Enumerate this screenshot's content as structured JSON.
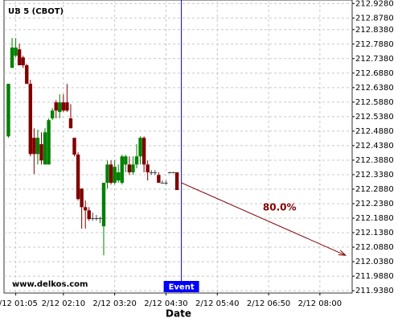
{
  "chart_data": {
    "type": "candlestick",
    "title": "UB 5 (CBOT)",
    "x_label": "Date",
    "watermark": "www.delkos.com",
    "up_color": "#008000",
    "down_color": "#800000",
    "grid": true,
    "xlim": [
      "2/12 00:49",
      "2/12 08:44"
    ],
    "ylim": [
      211.93,
      212.94
    ],
    "xticks": [
      "2/12 01:05",
      "2/12 02:10",
      "2/12 03:20",
      "2/12 04:30",
      "2/12 05:40",
      "2/12 06:50",
      "2/12 08:00"
    ],
    "yticks": [
      {
        "value": 212.928,
        "label": "212.9280"
      },
      {
        "value": 212.878,
        "label": "212.8780"
      },
      {
        "value": 212.838,
        "label": "212.8380"
      },
      {
        "value": 212.788,
        "label": "212.7880"
      },
      {
        "value": 212.738,
        "label": "212.7380"
      },
      {
        "value": 212.688,
        "label": "212.6880"
      },
      {
        "value": 212.638,
        "label": "212.6380"
      },
      {
        "value": 212.588,
        "label": "212.5880"
      },
      {
        "value": 212.538,
        "label": "212.5380"
      },
      {
        "value": 212.488,
        "label": "212.4880"
      },
      {
        "value": 212.438,
        "label": "212.4380"
      },
      {
        "value": 212.388,
        "label": "212.3880"
      },
      {
        "value": 212.338,
        "label": "212.3380"
      },
      {
        "value": 212.288,
        "label": "212.2880"
      },
      {
        "value": 212.238,
        "label": "212.2380"
      },
      {
        "value": 212.188,
        "label": "212.1880"
      },
      {
        "value": 212.138,
        "label": "212.1380"
      },
      {
        "value": 212.088,
        "label": "212.0880"
      },
      {
        "value": 212.038,
        "label": "212.0380"
      },
      {
        "value": 211.988,
        "label": "211.9880"
      },
      {
        "value": 211.938,
        "label": "211.9380"
      }
    ],
    "x": [
      "2/12 00:55",
      "2/12 01:00",
      "2/12 01:05",
      "2/12 01:10",
      "2/12 01:15",
      "2/12 01:20",
      "2/12 01:25",
      "2/12 01:30",
      "2/12 01:35",
      "2/12 01:40",
      "2/12 01:45",
      "2/12 01:50",
      "2/12 01:55",
      "2/12 02:00",
      "2/12 02:05",
      "2/12 02:10",
      "2/12 02:15",
      "2/12 02:20",
      "2/12 02:25",
      "2/12 02:30",
      "2/12 02:35",
      "2/12 02:40",
      "2/12 02:45",
      "2/12 02:50",
      "2/12 02:55",
      "2/12 03:00",
      "2/12 03:05",
      "2/12 03:10",
      "2/12 03:15",
      "2/12 03:20",
      "2/12 03:25",
      "2/12 03:30",
      "2/12 03:35",
      "2/12 03:40",
      "2/12 03:45",
      "2/12 03:50",
      "2/12 03:55",
      "2/12 04:00",
      "2/12 04:05",
      "2/12 04:10",
      "2/12 04:15",
      "2/12 04:20",
      "2/12 04:25",
      "2/12 04:30",
      "2/12 04:35",
      "2/12 04:40",
      "2/12 04:45"
    ],
    "open": [
      212.47,
      212.706,
      212.748,
      212.77,
      212.742,
      212.715,
      212.651,
      212.465,
      212.409,
      212.443,
      212.373,
      212.373,
      212.532,
      212.587,
      212.554,
      212.587,
      212.587,
      212.532,
      212.465,
      212.407,
      212.29,
      212.226,
      212.215,
      212.188,
      212.188,
      212.188,
      212.16,
      212.31,
      212.373,
      212.31,
      212.318,
      212.31,
      212.373,
      212.373,
      212.346,
      212.373,
      212.401,
      212.465,
      212.373,
      212.346,
      212.346,
      212.337,
      212.31,
      212.31,
      212.346,
      212.346,
      212.346
    ],
    "high": [
      212.651,
      212.809,
      212.809,
      212.789,
      212.748,
      212.72,
      212.665,
      212.498,
      212.493,
      212.484,
      212.498,
      212.532,
      212.568,
      212.595,
      212.615,
      212.615,
      212.651,
      212.581,
      212.465,
      212.415,
      212.29,
      212.249,
      212.226,
      212.207,
      212.199,
      212.193,
      212.31,
      212.387,
      212.387,
      212.387,
      212.373,
      212.407,
      212.407,
      212.401,
      212.401,
      212.443,
      212.47,
      212.47,
      212.387,
      212.354,
      212.354,
      212.346,
      212.318,
      212.318,
      212.348,
      212.348,
      212.346
    ],
    "low": [
      212.465,
      212.706,
      212.742,
      212.715,
      212.706,
      212.651,
      212.401,
      212.34,
      212.373,
      212.373,
      212.373,
      212.373,
      212.526,
      212.532,
      212.532,
      212.554,
      212.554,
      212.498,
      212.401,
      212.249,
      212.152,
      212.152,
      212.179,
      212.179,
      212.179,
      212.171,
      212.06,
      212.29,
      212.304,
      212.304,
      212.31,
      212.304,
      212.346,
      212.337,
      212.337,
      212.36,
      212.373,
      212.346,
      212.318,
      212.337,
      212.337,
      212.31,
      212.31,
      212.304,
      212.343,
      212.343,
      212.285
    ],
    "close": [
      212.651,
      212.776,
      212.776,
      212.715,
      212.715,
      212.651,
      212.409,
      212.409,
      212.465,
      212.387,
      212.484,
      212.526,
      212.559,
      212.559,
      212.587,
      212.559,
      212.559,
      212.498,
      212.407,
      212.254,
      212.226,
      212.215,
      212.185,
      212.188,
      212.188,
      212.188,
      212.31,
      212.373,
      212.31,
      212.365,
      212.346,
      212.401,
      212.401,
      212.346,
      212.373,
      212.401,
      212.465,
      212.373,
      212.346,
      212.346,
      212.346,
      212.31,
      212.31,
      212.31,
      212.346,
      212.346,
      212.285
    ],
    "event": {
      "x": "2/12 04:51",
      "label": "Event",
      "color": "#0000ff"
    },
    "projection": {
      "x": [
        "2/12 04:51",
        "2/12 08:35"
      ],
      "y": [
        212.31,
        212.06
      ],
      "label": "80.0%",
      "color": "#800000"
    }
  }
}
